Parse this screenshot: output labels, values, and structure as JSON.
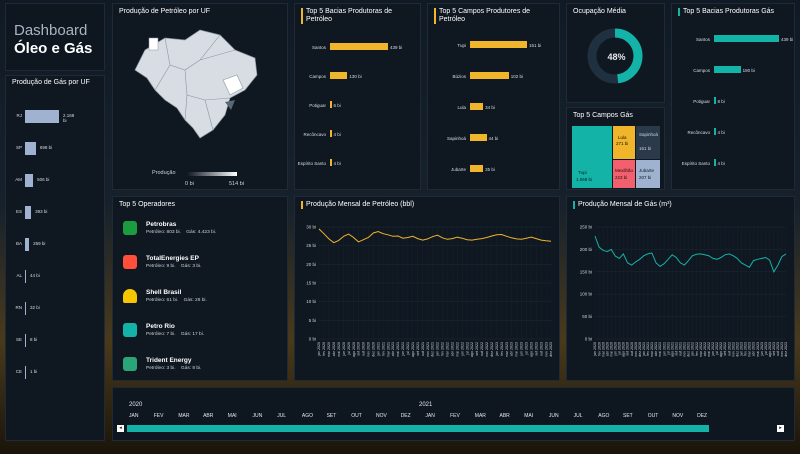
{
  "dashboard": {
    "title_line1": "Dashboard",
    "title_line2": "Óleo e Gás"
  },
  "gas_uf": {
    "title": "Produção de Gás por UF",
    "items": [
      {
        "label": "RJ",
        "value": "2.169 bi",
        "frac": 1.0
      },
      {
        "label": "SP",
        "value": "698 bi",
        "frac": 0.32
      },
      {
        "label": "AM",
        "value": "506 bi",
        "frac": 0.24
      },
      {
        "label": "ES",
        "value": "393 bi",
        "frac": 0.18
      },
      {
        "label": "BA",
        "value": "259 bi",
        "frac": 0.12
      },
      {
        "label": "AL",
        "value": "44 bi",
        "frac": 0.02
      },
      {
        "label": "RN",
        "value": "32 bi",
        "frac": 0.015
      },
      {
        "label": "SE",
        "value": "8 bi",
        "frac": 0.005
      },
      {
        "label": "CE",
        "value": "1 bi",
        "frac": 0.002
      }
    ]
  },
  "map": {
    "title": "Produção de Petróleo por UF",
    "legend_label": "Produção",
    "legend_min": "0 bi",
    "legend_max": "514 bi"
  },
  "basins_oil": {
    "title": "Top 5 Bacias Produtoras de Petróleo",
    "items": [
      {
        "label": "Santos",
        "value": "439 bi",
        "frac": 1.0
      },
      {
        "label": "Campos",
        "value": "130 bi",
        "frac": 0.3
      },
      {
        "label": "Potiguar",
        "value": "6 bi",
        "frac": 0.02
      },
      {
        "label": "Recôncavo",
        "value": "4 bi",
        "frac": 0.012
      },
      {
        "label": "Espírito Santo",
        "value": "4 bi",
        "frac": 0.012
      }
    ]
  },
  "fields_oil": {
    "title": "Top 5 Campos Produtores de Petróleo",
    "items": [
      {
        "label": "Tupi",
        "value": "151 bi",
        "frac": 1.0
      },
      {
        "label": "Búzios",
        "value": "102 bi",
        "frac": 0.68
      },
      {
        "label": "Lula",
        "value": "34 bi",
        "frac": 0.23
      },
      {
        "label": "Sapinhoá",
        "value": "44 bi",
        "frac": 0.29
      },
      {
        "label": "Jubarte",
        "value": "35 bi",
        "frac": 0.23
      }
    ]
  },
  "occupancy": {
    "title": "Ocupação Média",
    "value_label": "48%",
    "value": 0.48
  },
  "fields_gas": {
    "title": "Top 5 Campos Gás",
    "cells": [
      {
        "label": "Tupi",
        "value": "1.068 bi",
        "color": "#14b3a8"
      },
      {
        "label": "Lula",
        "value": "271 bi",
        "color": "#f0b52a"
      },
      {
        "label": "Sapinhoá",
        "value": "161 bi",
        "color": "#2a3a4a"
      },
      {
        "label": "Mexilhão",
        "value": "223 bi",
        "color": "#f2606e"
      },
      {
        "label": "Jubarte",
        "value": "207 bi",
        "color": "#9fb3d1"
      }
    ]
  },
  "basins_gas": {
    "title": "Top 5 Bacias Produtoras Gás",
    "items": [
      {
        "label": "Santos",
        "value": "439 bi",
        "frac": 1.0
      },
      {
        "label": "Campos",
        "value": "180 bi",
        "frac": 0.41
      },
      {
        "label": "Potiguar",
        "value": "8 bi",
        "frac": 0.02
      },
      {
        "label": "Recôncavo",
        "value": "4 bi",
        "frac": 0.01
      },
      {
        "label": "Espírito Santo",
        "value": "4 bi",
        "frac": 0.01
      }
    ]
  },
  "operators": {
    "title": "Top 5 Operadores",
    "items": [
      {
        "name": "Petrobras",
        "detail": "Petróleo: 803 bi.    Gás: 4.423 bi.",
        "logo": "petrobras-logo"
      },
      {
        "name": "TotalEnergies EP",
        "detail": "Petróleo: 9 bi.    Gás: 3 bi.",
        "logo": "totalenergies-logo"
      },
      {
        "name": "Shell Brasil",
        "detail": "Petróleo: 61 bi.    Gás: 28 bi.",
        "logo": "shell-logo"
      },
      {
        "name": "Petro Rio",
        "detail": "Petróleo: 7 bi.    Gás: 17 bi.",
        "logo": "petrorio-logo"
      },
      {
        "name": "Trident Energy",
        "detail": "Petróleo: 3 bi.    Gás: 8 bi.",
        "logo": "trident-logo"
      }
    ]
  },
  "chart_data": [
    {
      "type": "line",
      "title": "Produção Mensal de Petróleo (bbl)",
      "ylim": [
        0,
        30
      ],
      "yticks": [
        "0 bi",
        "5 bi",
        "10 bi",
        "15 bi",
        "20 bi",
        "25 bi",
        "30 bi"
      ],
      "x": [
        "jan 2020",
        "fev 2020",
        "mar 2020",
        "abr 2020",
        "mai 2020",
        "jun 2020",
        "jul 2020",
        "ago 2020",
        "set 2020",
        "out 2020",
        "nov 2020",
        "dez 2020",
        "jan 2021",
        "fev 2021",
        "mar 2021",
        "abr 2021",
        "mai 2021",
        "jun 2021",
        "jul 2021",
        "ago 2021",
        "set 2021",
        "out 2021",
        "nov 2021",
        "dez 2021",
        "jan 2022",
        "fev 2022",
        "mar 2022",
        "abr 2022",
        "mai 2022",
        "jun 2022",
        "jul 2022",
        "ago 2022",
        "set 2022",
        "out 2022",
        "nov 2022",
        "dez 2022",
        "jan 2023",
        "fev 2023",
        "mar 2023",
        "abr 2023",
        "mai 2023",
        "jun 2023",
        "jul 2023",
        "ago 2023",
        "set 2023",
        "out 2023",
        "nov 2023",
        "dez 2023"
      ],
      "series": [
        {
          "values": [
            29.5,
            28.2,
            26.8,
            25.8,
            26.4,
            27.5,
            28.1,
            27.2,
            26.0,
            26.6,
            27.2,
            28.4,
            28.8,
            28.2,
            27.9,
            27.5,
            27.6,
            27.0,
            27.2,
            27.5,
            26.9,
            26.5,
            26.8,
            27.4,
            27.8,
            27.1,
            26.7,
            26.9,
            27.3,
            27.0,
            26.6,
            26.5,
            26.7,
            26.9,
            27.2,
            27.6,
            27.9,
            28.0,
            27.5,
            27.1,
            26.8,
            26.7,
            27.0,
            27.3,
            26.9,
            26.5,
            26.3,
            26.2
          ],
          "color": "#f0b52a"
        }
      ]
    },
    {
      "type": "line",
      "title": "Produção Mensal de Gás (m³)",
      "ylim": [
        0,
        250
      ],
      "yticks": [
        "0 bi",
        "50 bi",
        "100 bi",
        "150 bi",
        "200 bi",
        "250 bi"
      ],
      "x": [
        "jan 2020",
        "fev 2020",
        "mar 2020",
        "abr 2020",
        "mai 2020",
        "jun 2020",
        "jul 2020",
        "ago 2020",
        "set 2020",
        "out 2020",
        "nov 2020",
        "dez 2020",
        "jan 2021",
        "fev 2021",
        "mar 2021",
        "abr 2021",
        "mai 2021",
        "jun 2021",
        "jul 2021",
        "ago 2021",
        "set 2021",
        "out 2021",
        "nov 2021",
        "dez 2021",
        "jan 2022",
        "fev 2022",
        "mar 2022",
        "abr 2022",
        "mai 2022",
        "jun 2022",
        "jul 2022",
        "ago 2022",
        "set 2022",
        "out 2022",
        "nov 2022",
        "dez 2022",
        "jan 2023",
        "fev 2023",
        "mar 2023",
        "abr 2023",
        "mai 2023",
        "jun 2023",
        "jul 2023",
        "ago 2023",
        "set 2023",
        "out 2023",
        "nov 2023",
        "dez 2023"
      ],
      "series": [
        {
          "values": [
            230,
            205,
            198,
            195,
            200,
            185,
            180,
            190,
            170,
            165,
            172,
            178,
            186,
            190,
            192,
            170,
            162,
            168,
            178,
            188,
            182,
            170,
            165,
            175,
            186,
            189,
            190,
            188,
            186,
            180,
            178,
            182,
            188,
            190,
            186,
            180,
            170,
            165,
            160,
            175,
            178,
            180,
            182,
            176,
            150,
            165,
            184,
            190
          ],
          "color": "#14b3a8"
        }
      ]
    }
  ],
  "timeline": {
    "year1": "2020",
    "year2": "2021",
    "months": [
      "JAN",
      "FEV",
      "MAR",
      "ABR",
      "MAI",
      "JUN",
      "JUL",
      "AGO",
      "SET",
      "OUT",
      "NOV",
      "DEZ",
      "JAN",
      "FEV",
      "MAR",
      "ABR",
      "MAI",
      "JUN",
      "JUL",
      "AGO",
      "SET",
      "OUT",
      "NOV",
      "DEZ"
    ]
  }
}
